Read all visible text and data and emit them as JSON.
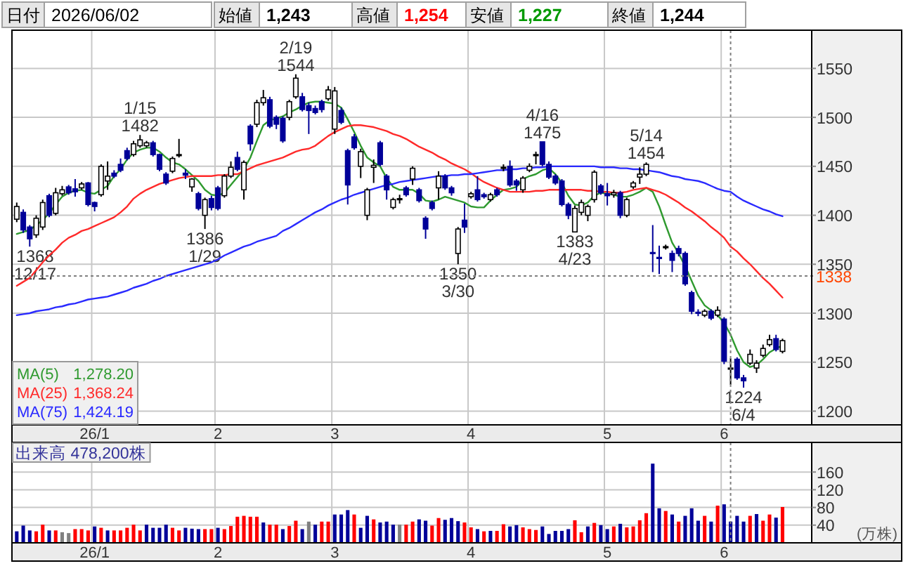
{
  "chart_data": [
    {
      "type": "candlestick",
      "categories": [
        null,
        null,
        null,
        null,
        null,
        null,
        null,
        null,
        null,
        null,
        null,
        null,
        "26/1",
        null,
        null,
        null,
        null,
        null,
        null,
        null,
        null,
        null,
        null,
        null,
        null,
        null,
        null,
        null,
        null,
        null,
        null,
        "2",
        null,
        null,
        null,
        null,
        null,
        null,
        null,
        null,
        null,
        null,
        null,
        null,
        null,
        null,
        null,
        null,
        null,
        "3",
        null,
        null,
        null,
        null,
        null,
        null,
        null,
        null,
        null,
        null,
        null,
        null,
        null,
        null,
        null,
        null,
        null,
        null,
        null,
        null,
        "4",
        null,
        null,
        null,
        null,
        null,
        null,
        null,
        null,
        null,
        null,
        null,
        null,
        null,
        null,
        null,
        null,
        null,
        null,
        null,
        null,
        "5",
        null,
        null,
        null,
        null,
        null,
        null,
        null,
        null,
        null,
        null,
        null,
        null,
        null,
        null,
        null,
        null,
        null,
        "6",
        null,
        null,
        null,
        null,
        null,
        null,
        null,
        null,
        null
      ],
      "ohlc": [
        [
          1396,
          1413,
          1393,
          1409
        ],
        [
          1403,
          1406,
          1382,
          1385
        ],
        [
          1388,
          1390,
          1368,
          1376
        ],
        [
          1380,
          1400,
          1377,
          1397
        ],
        [
          1388,
          1416,
          1385,
          1413
        ],
        [
          1420,
          1422,
          1398,
          1400
        ],
        [
          1402,
          1428,
          1400,
          1423
        ],
        [
          1422,
          1430,
          1420,
          1426
        ],
        [
          1429,
          1431,
          1421,
          1423
        ],
        [
          1427,
          1437,
          1419,
          1424
        ],
        [
          1428,
          1434,
          1426,
          1432
        ],
        [
          1433,
          1434,
          1409,
          1411
        ],
        [
          1413,
          1414,
          1404,
          1409
        ],
        [
          1421,
          1452,
          1419,
          1450
        ],
        [
          1435,
          1455,
          1426,
          1440
        ],
        [
          1443,
          1446,
          1438,
          1440
        ],
        [
          1452,
          1458,
          1444,
          1446
        ],
        [
          1466,
          1469,
          1456,
          1458
        ],
        [
          1462,
          1476,
          1460,
          1473
        ],
        [
          1471,
          1482,
          1469,
          1477
        ],
        [
          1471,
          1476,
          1469,
          1474
        ],
        [
          1474,
          1476,
          1460,
          1462
        ],
        [
          1462,
          1463,
          1445,
          1447
        ],
        [
          1442,
          1444,
          1431,
          1433
        ],
        [
          1445,
          1460,
          1443,
          1458
        ],
        [
          1461,
          1478,
          1459,
          1462
        ],
        [
          1443,
          1447,
          1437,
          1441
        ],
        [
          1429,
          1438,
          1424,
          1437
        ],
        [
          1422,
          1424,
          1405,
          1407
        ],
        [
          1400,
          1418,
          1386,
          1416
        ],
        [
          1417,
          1420,
          1405,
          1408
        ],
        [
          1428,
          1430,
          1405,
          1407
        ],
        [
          1420,
          1442,
          1418,
          1440
        ],
        [
          1440,
          1455,
          1438,
          1449
        ],
        [
          1459,
          1465,
          1445,
          1447
        ],
        [
          1426,
          1456,
          1416,
          1454
        ],
        [
          1491,
          1493,
          1466,
          1473
        ],
        [
          1493,
          1518,
          1490,
          1515
        ],
        [
          1515,
          1528,
          1512,
          1520
        ],
        [
          1518,
          1521,
          1489,
          1491
        ],
        [
          1500,
          1502,
          1488,
          1493
        ],
        [
          1499,
          1501,
          1474,
          1476
        ],
        [
          1500,
          1518,
          1497,
          1516
        ],
        [
          1521,
          1544,
          1519,
          1540
        ],
        [
          1521,
          1525,
          1506,
          1508
        ],
        [
          1512,
          1515,
          1483,
          1507
        ],
        [
          1509,
          1512,
          1503,
          1505
        ],
        [
          1516,
          1518,
          1505,
          1508
        ],
        [
          1519,
          1532,
          1517,
          1528
        ],
        [
          1488,
          1531,
          1483,
          1527
        ],
        [
          1507,
          1510,
          1493,
          1495
        ],
        [
          1466,
          1468,
          1411,
          1431
        ],
        [
          1480,
          1483,
          1467,
          1469
        ],
        [
          1450,
          1468,
          1438,
          1465
        ],
        [
          1400,
          1428,
          1395,
          1426
        ],
        [
          1449,
          1457,
          1433,
          1451
        ],
        [
          1474,
          1476,
          1450,
          1452
        ],
        [
          1440,
          1442,
          1416,
          1426
        ],
        [
          1408,
          1418,
          1406,
          1416
        ],
        [
          1416,
          1421,
          1412,
          1417
        ],
        [
          1428,
          1430,
          1419,
          1421
        ],
        [
          1437,
          1450,
          1431,
          1448
        ],
        [
          1426,
          1428,
          1413,
          1415
        ],
        [
          1397,
          1399,
          1376,
          1386
        ],
        [
          1413,
          1415,
          1405,
          1407
        ],
        [
          1428,
          1445,
          1416,
          1440
        ],
        [
          1440,
          1442,
          1426,
          1428
        ],
        [
          1428,
          1430,
          1420,
          1423
        ],
        [
          1361,
          1388,
          1350,
          1386
        ],
        [
          1395,
          1412,
          1382,
          1388
        ],
        [
          1419,
          1424,
          1417,
          1422
        ],
        [
          1426,
          1440,
          1414,
          1416
        ],
        [
          1421,
          1423,
          1417,
          1419
        ],
        [
          1416,
          1423,
          1414,
          1421
        ],
        [
          1426,
          1428,
          1419,
          1421
        ],
        [
          1448,
          1452,
          1445,
          1449
        ],
        [
          1450,
          1456,
          1429,
          1431
        ],
        [
          1435,
          1437,
          1425,
          1431
        ],
        [
          1426,
          1440,
          1423,
          1438
        ],
        [
          1446,
          1453,
          1444,
          1450
        ],
        [
          1461,
          1465,
          1452,
          1462
        ],
        [
          1475,
          1475,
          1450,
          1452
        ],
        [
          1452,
          1455,
          1437,
          1439
        ],
        [
          1440,
          1442,
          1431,
          1433
        ],
        [
          1435,
          1437,
          1409,
          1411
        ],
        [
          1411,
          1413,
          1396,
          1400
        ],
        [
          1383,
          1410,
          1383,
          1407
        ],
        [
          1403,
          1416,
          1400,
          1413
        ],
        [
          1400,
          1411,
          1394,
          1409
        ],
        [
          1416,
          1446,
          1413,
          1444
        ],
        [
          1430,
          1432,
          1421,
          1423
        ],
        [
          1422,
          1433,
          1410,
          1420
        ],
        [
          1421,
          1426,
          1418,
          1423
        ],
        [
          1423,
          1425,
          1397,
          1400
        ],
        [
          1400,
          1418,
          1398,
          1416
        ],
        [
          1429,
          1435,
          1427,
          1433
        ],
        [
          1439,
          1449,
          1432,
          1442
        ],
        [
          1442,
          1454,
          1440,
          1452
        ],
        [
          1362,
          1390,
          1342,
          1361
        ],
        [
          1357,
          1369,
          1340,
          1356
        ],
        [
          1367,
          1370,
          1365,
          1368
        ],
        [
          1361,
          1364,
          1342,
          1354
        ],
        [
          1366,
          1369,
          1358,
          1361
        ],
        [
          1361,
          1363,
          1328,
          1330
        ],
        [
          1321,
          1323,
          1299,
          1302
        ],
        [
          1301,
          1304,
          1297,
          1300
        ],
        [
          1298,
          1304,
          1296,
          1302
        ],
        [
          1302,
          1304,
          1293,
          1295
        ],
        [
          1298,
          1307,
          1296,
          1303
        ],
        [
          1294,
          1296,
          1248,
          1251
        ],
        [
          1243,
          1254,
          1227,
          1244
        ],
        [
          1253,
          1255,
          1232,
          1234
        ],
        [
          1234,
          1237,
          1224,
          1231
        ],
        [
          1249,
          1263,
          1247,
          1258
        ],
        [
          1244,
          1252,
          1239,
          1249
        ],
        [
          1257,
          1268,
          1255,
          1264
        ],
        [
          1268,
          1278,
          1266,
          1273
        ],
        [
          1274,
          1278,
          1261,
          1263
        ],
        [
          1261,
          1274,
          1259,
          1272
        ]
      ],
      "colors": [
        "#ffffff",
        "#000099",
        "#000099",
        "#ffffff",
        "#ffffff",
        "#000099",
        "#ffffff",
        "#ffffff",
        "#000099",
        "#000099",
        "#ffffff",
        "#000099",
        "#000099",
        "#ffffff",
        "#ffffff",
        "#000099",
        "#000099",
        "#000099",
        "#ffffff",
        "#ffffff",
        "#ffffff",
        "#000099",
        "#000099",
        "#000099",
        "#ffffff",
        "#ffffff",
        "#000099",
        "#ffffff",
        "#000099",
        "#ffffff",
        "#000099",
        "#000099",
        "#ffffff",
        "#ffffff",
        "#000099",
        "#ffffff",
        "#000099",
        "#ffffff",
        "#ffffff",
        "#000099",
        "#000099",
        "#000099",
        "#ffffff",
        "#ffffff",
        "#000099",
        "#000099",
        "#000099",
        "#000099",
        "#ffffff",
        "#ffffff",
        "#000099",
        "#000099",
        "#000099",
        "#ffffff",
        "#ffffff",
        "#ffffff",
        "#000099",
        "#000099",
        "#ffffff",
        "#ffffff",
        "#000099",
        "#ffffff",
        "#000099",
        "#000099",
        "#000099",
        "#ffffff",
        "#000099",
        "#000099",
        "#ffffff",
        "#000099",
        "#ffffff",
        "#000099",
        "#000099",
        "#ffffff",
        "#000099",
        "#ffffff",
        "#000099",
        "#000099",
        "#ffffff",
        "#ffffff",
        "#ffffff",
        "#000099",
        "#000099",
        "#000099",
        "#000099",
        "#000099",
        "#ffffff",
        "#ffffff",
        "#ffffff",
        "#ffffff",
        "#000099",
        "#000099",
        "#ffffff",
        "#000099",
        "#ffffff",
        "#ffffff",
        "#ffffff",
        "#ffffff",
        "#000099",
        "#000099",
        "#ffffff",
        "#000099",
        "#000099",
        "#000099",
        "#000099",
        "#000099",
        "#ffffff",
        "#000099",
        "#ffffff",
        "#000099",
        "#ffffff",
        "#000099",
        "#000099",
        "#ffffff",
        "#ffffff",
        "#ffffff",
        "#ffffff",
        "#000099",
        "#ffffff"
      ],
      "series": [
        {
          "type": "line",
          "name": "MA(5) 1,278.20",
          "color": "#2f9a2f",
          "values": [
            1381,
            1383,
            1385,
            1390,
            1395,
            1402,
            1411,
            1419,
            1423,
            1425,
            1426,
            1423,
            1422,
            1426,
            1430,
            1440,
            1447,
            1457,
            1464,
            1467,
            1469,
            1469,
            1465,
            1459,
            1454,
            1452,
            1447,
            1441,
            1435,
            1426,
            1421,
            1420,
            1423,
            1431,
            1439,
            1447,
            1459,
            1476,
            1492,
            1497,
            1499,
            1501,
            1505,
            1508,
            1512,
            1515,
            1516,
            1516,
            1515,
            1514,
            1510,
            1498,
            1485,
            1471,
            1459,
            1454,
            1450,
            1438,
            1429,
            1426,
            1426,
            1426,
            1422,
            1415,
            1414,
            1416,
            1419,
            1417,
            1415,
            1413,
            1409,
            1408,
            1408,
            1415,
            1421,
            1426,
            1427,
            1429,
            1437,
            1440,
            1442,
            1446,
            1448,
            1442,
            1433,
            1420,
            1411,
            1410,
            1413,
            1420,
            1423,
            1422,
            1421,
            1419,
            1419,
            1421,
            1424,
            1428,
            1424,
            1409,
            1390,
            1372,
            1361,
            1348,
            1333,
            1318,
            1308,
            1303,
            1298,
            1290,
            1278,
            1262,
            1250,
            1245,
            1247,
            1253,
            1260,
            1264,
            1267
          ]
        },
        {
          "type": "line",
          "name": "MA(25) 1,368.24",
          "color": "#ff2a2a",
          "values": [
            1328,
            1332,
            1336,
            1344,
            1352,
            1359,
            1365,
            1372,
            1377,
            1380,
            1384,
            1386,
            1389,
            1392,
            1395,
            1398,
            1403,
            1409,
            1417,
            1422,
            1426,
            1429,
            1432,
            1434,
            1436,
            1438,
            1439,
            1440,
            1440,
            1440,
            1440,
            1441,
            1441,
            1442,
            1442,
            1445,
            1448,
            1451,
            1453,
            1455,
            1457,
            1459,
            1462,
            1465,
            1467,
            1468,
            1471,
            1476,
            1481,
            1485,
            1488,
            1491,
            1492,
            1492,
            1491,
            1490,
            1488,
            1486,
            1483,
            1481,
            1478,
            1474,
            1470,
            1467,
            1464,
            1460,
            1457,
            1453,
            1450,
            1447,
            1443,
            1438,
            1434,
            1431,
            1428,
            1426,
            1424,
            1424,
            1424,
            1424,
            1425,
            1425,
            1426,
            1426,
            1426,
            1426,
            1426,
            1426,
            1425,
            1425,
            1424,
            1424,
            1423,
            1423,
            1424,
            1426,
            1427,
            1428,
            1426,
            1424,
            1421,
            1417,
            1413,
            1408,
            1404,
            1399,
            1394,
            1388,
            1383,
            1377,
            1368,
            1363,
            1356,
            1350,
            1343,
            1336,
            1330,
            1323,
            1316
          ]
        },
        {
          "type": "line",
          "name": "MA(75) 1,424.19",
          "color": "#2a2aff",
          "values": [
            1298,
            1299,
            1300,
            1302,
            1303,
            1304,
            1306,
            1307,
            1309,
            1310,
            1312,
            1314,
            1315,
            1316,
            1317,
            1319,
            1321,
            1323,
            1326,
            1328,
            1330,
            1333,
            1335,
            1338,
            1340,
            1342,
            1344,
            1346,
            1348,
            1350,
            1352,
            1355,
            1359,
            1362,
            1365,
            1368,
            1370,
            1373,
            1375,
            1377,
            1379,
            1384,
            1387,
            1391,
            1395,
            1399,
            1403,
            1406,
            1410,
            1413,
            1416,
            1418,
            1421,
            1423,
            1425,
            1427,
            1429,
            1431,
            1432,
            1434,
            1435,
            1436,
            1437,
            1438,
            1439,
            1440,
            1440,
            1441,
            1441,
            1442,
            1442,
            1443,
            1444,
            1445,
            1446,
            1446,
            1447,
            1447,
            1448,
            1448,
            1449,
            1449,
            1450,
            1450,
            1450,
            1450,
            1450,
            1450,
            1450,
            1450,
            1449,
            1449,
            1449,
            1448,
            1448,
            1447,
            1447,
            1446,
            1445,
            1444,
            1442,
            1440,
            1439,
            1437,
            1436,
            1435,
            1433,
            1430,
            1427,
            1425,
            1424,
            1419,
            1415,
            1412,
            1409,
            1406,
            1404,
            1401,
            1399
          ]
        }
      ],
      "ylim": [
        1186,
        1589
      ],
      "yticks": [
        1200,
        1250,
        1300,
        1350,
        1400,
        1450,
        1500,
        1550
      ],
      "grid": true,
      "legend": "bottom left",
      "ref_lines": [
        {
          "axis": "y",
          "value": 1338,
          "label": "1338",
          "color": "#808080",
          "line_style": "dotted"
        }
      ],
      "annotations": [
        "日付",
        "2026/06/02",
        "始値",
        "1,243",
        "高値",
        "1,254",
        "安値",
        "1,227",
        "終値",
        "1,244",
        {
          "text": "1368\n12/17",
          "y": 1368
        },
        {
          "text": "1/15\n1482",
          "y": 1482
        },
        {
          "text": "1386\n1/29",
          "y": 1386
        },
        {
          "text": "2/19\n1544",
          "y": 1544
        },
        {
          "text": "1350\n3/30",
          "y": 1350
        },
        {
          "text": "4/16\n1475",
          "y": 1475
        },
        {
          "text": "1383\n4/23",
          "y": 1383
        },
        {
          "text": "5/14\n1454",
          "y": 1454
        },
        {
          "text": "1224\n6/4",
          "y": 1224
        }
      ]
    },
    {
      "type": "bar",
      "title": "出来高 478,200株",
      "ylabel": "(万株)",
      "categories": [
        null,
        null,
        null,
        null,
        null,
        null,
        null,
        null,
        null,
        null,
        null,
        null,
        "26/1",
        null,
        null,
        null,
        null,
        null,
        null,
        null,
        null,
        null,
        null,
        null,
        null,
        null,
        null,
        null,
        null,
        null,
        null,
        "2",
        null,
        null,
        null,
        null,
        null,
        null,
        null,
        null,
        null,
        null,
        null,
        null,
        null,
        null,
        null,
        null,
        null,
        "3",
        null,
        null,
        null,
        null,
        null,
        null,
        null,
        null,
        null,
        null,
        null,
        null,
        null,
        null,
        null,
        null,
        null,
        null,
        null,
        null,
        "4",
        null,
        null,
        null,
        null,
        null,
        null,
        null,
        null,
        null,
        null,
        null,
        null,
        null,
        null,
        null,
        null,
        null,
        null,
        null,
        null,
        "5",
        null,
        null,
        null,
        null,
        null,
        null,
        null,
        null,
        null,
        null,
        null,
        null,
        null,
        null,
        null,
        null,
        null,
        "6",
        null,
        null,
        null,
        null,
        null,
        null,
        null,
        null,
        null
      ],
      "values": [
        26,
        39,
        28,
        26,
        41,
        28,
        28,
        24,
        22,
        31,
        31,
        28,
        37,
        34,
        28,
        28,
        28,
        34,
        41,
        28,
        41,
        34,
        34,
        41,
        34,
        28,
        34,
        32,
        31,
        31,
        31,
        34,
        31,
        38,
        59,
        61,
        59,
        59,
        46,
        41,
        41,
        31,
        38,
        50,
        31,
        48,
        41,
        48,
        48,
        64,
        64,
        74,
        64,
        34,
        61,
        53,
        46,
        48,
        41,
        41,
        41,
        48,
        53,
        50,
        39,
        56,
        52,
        56,
        49,
        46,
        35,
        31,
        26,
        27,
        27,
        42,
        37,
        40,
        35,
        31,
        29,
        37,
        20,
        27,
        27,
        31,
        51,
        24,
        37,
        45,
        40,
        31,
        37,
        43,
        35,
        37,
        51,
        67,
        179,
        78,
        72,
        64,
        48,
        61,
        78,
        50,
        61,
        48,
        84,
        87,
        48,
        61,
        48,
        61,
        65,
        50,
        64,
        57,
        81
      ],
      "colors": [
        "#000099",
        "#000099",
        "#000099",
        "#ff0000",
        "#ff0000",
        "#000099",
        "#ff0000",
        "#808080",
        "#808080",
        "#ff0000",
        "#ff0000",
        "#ff0000",
        "#000099",
        "#ff0000",
        "#000099",
        "#ff0000",
        "#ff0000",
        "#ff0000",
        "#ff0000",
        "#ff0000",
        "#000099",
        "#000099",
        "#000099",
        "#000099",
        "#ff0000",
        "#ff0000",
        "#000099",
        "#000099",
        "#000099",
        "#ff0000",
        "#ff0000",
        "#000099",
        "#ff0000",
        "#ff0000",
        "#ff0000",
        "#ff0000",
        "#ff0000",
        "#ff0000",
        "#000099",
        "#ff0000",
        "#ff0000",
        "#000099",
        "#ff0000",
        "#ff0000",
        "#000099",
        "#808080",
        "#000099",
        "#ff0000",
        "#ff0000",
        "#000099",
        "#000099",
        "#000099",
        "#ff0000",
        "#000099",
        "#000099",
        "#ff0000",
        "#000099",
        "#000099",
        "#000099",
        "#808080",
        "#ff0000",
        "#ff0000",
        "#000099",
        "#000099",
        "#ff0000",
        "#ff0000",
        "#000099",
        "#000099",
        "#000099",
        "#ff0000",
        "#ff0000",
        "#000099",
        "#ff0000",
        "#000099",
        "#ff0000",
        "#ff0000",
        "#000099",
        "#000099",
        "#ff0000",
        "#ff0000",
        "#ff0000",
        "#000099",
        "#000099",
        "#000099",
        "#000099",
        "#000099",
        "#ff0000",
        "#ff0000",
        "#000099",
        "#ff0000",
        "#000099",
        "#000099",
        "#ff0000",
        "#000099",
        "#ff0000",
        "#ff0000",
        "#ff0000",
        "#ff0000",
        "#000099",
        "#000099",
        "#ff0000",
        "#000099",
        "#ff0000",
        "#000099",
        "#000099",
        "#000099",
        "#ff0000",
        "#000099",
        "#ff0000",
        "#000099",
        "#000099",
        "#000099",
        "#000099",
        "#ff0000",
        "#000099",
        "#ff0000",
        "#ff0000",
        "#000099",
        "#ff0000"
      ],
      "ylim": [
        0,
        227
      ],
      "yticks": [
        40,
        80,
        120,
        160
      ],
      "grid": true
    }
  ]
}
